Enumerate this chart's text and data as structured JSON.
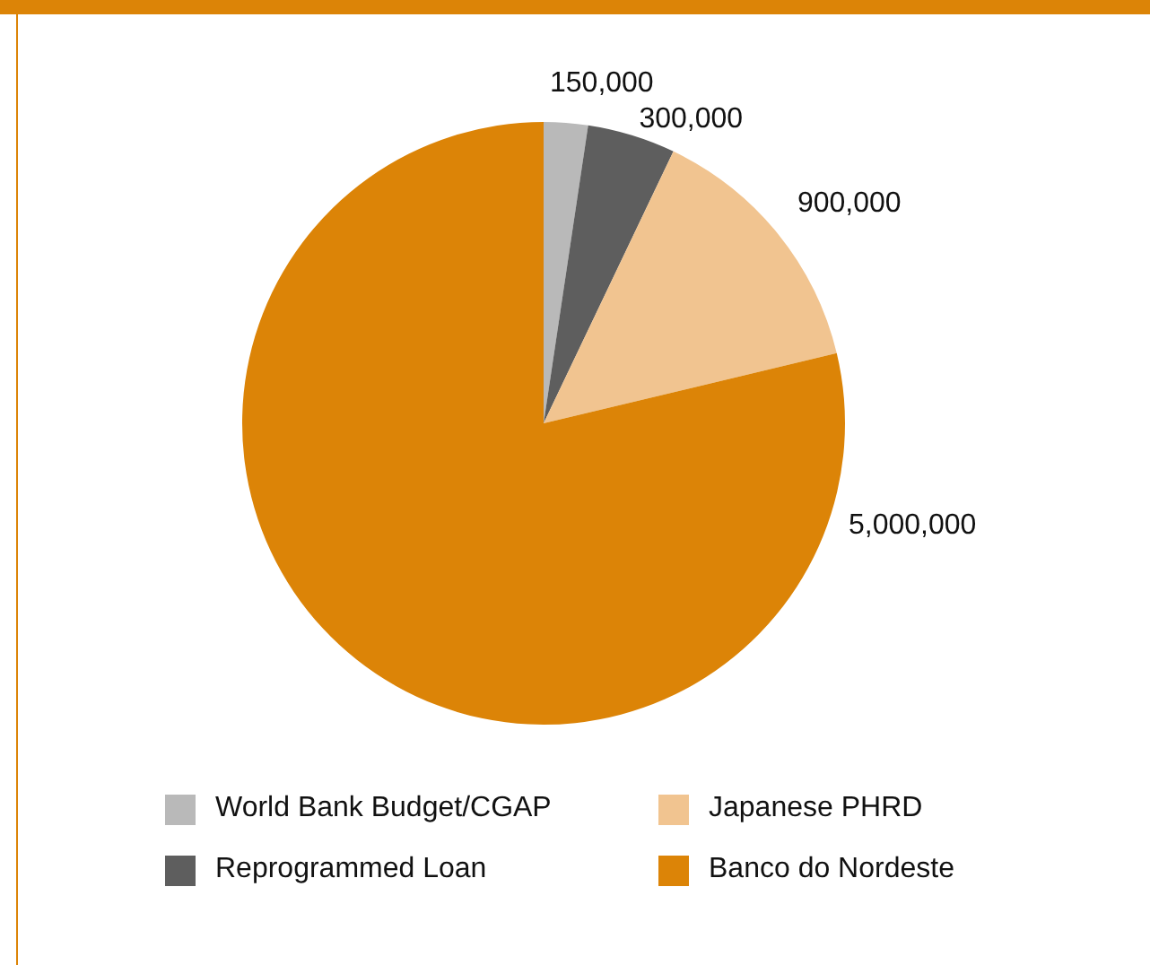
{
  "chart_data": {
    "type": "pie",
    "categories": [
      "World Bank Budget/CGAP",
      "Reprogrammed Loan",
      "Japanese PHRD",
      "Banco do Nordeste"
    ],
    "values": [
      150000,
      300000,
      900000,
      5000000
    ],
    "colors": [
      "#b9b9b9",
      "#5e5e5e",
      "#f1c490",
      "#dc8407"
    ],
    "value_labels": [
      "150,000",
      "300,000",
      "900,000",
      "5,000,000"
    ],
    "legend": "bottom"
  }
}
